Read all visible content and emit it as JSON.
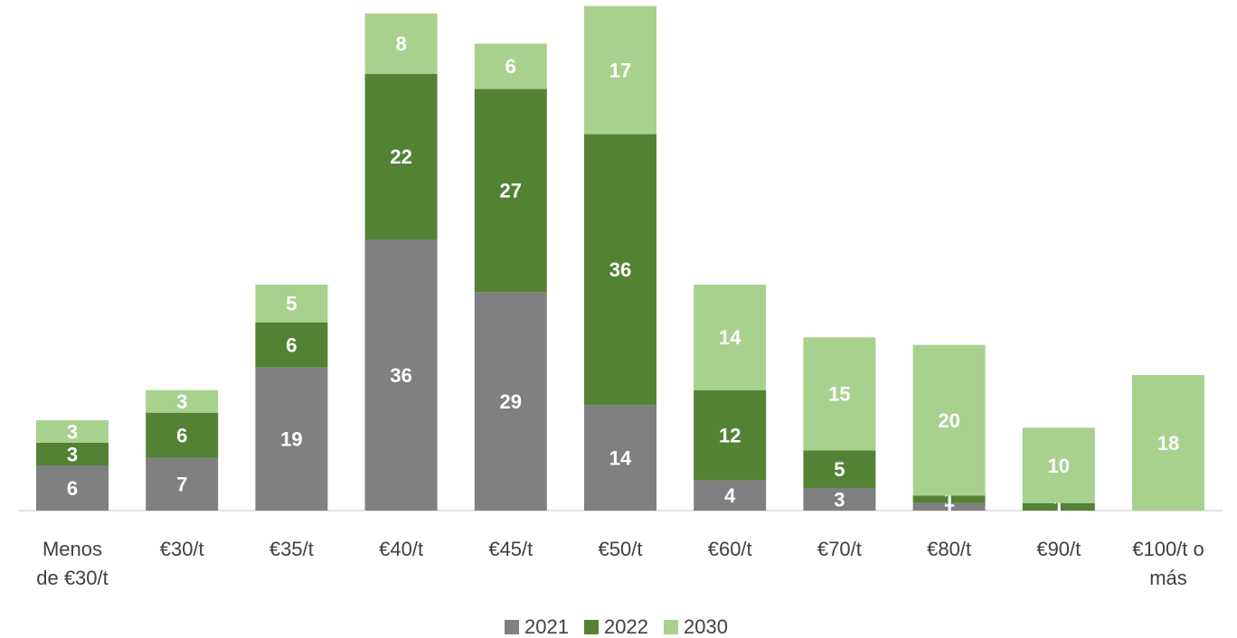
{
  "chart_data": {
    "type": "stacked_bar",
    "categories": [
      "Menos de €30/t",
      "€30/t",
      "€35/t",
      "€40/t",
      "€45/t",
      "€50/t",
      "€60/t",
      "€70/t",
      "€80/t",
      "€90/t",
      "€100/t o más"
    ],
    "series": [
      {
        "name": "2021",
        "color": "#808080",
        "values": [
          6,
          7,
          19,
          36,
          29,
          14,
          4,
          3,
          1,
          null,
          null
        ]
      },
      {
        "name": "2022",
        "color": "#548235",
        "values": [
          3,
          6,
          6,
          22,
          27,
          36,
          12,
          5,
          1,
          1,
          null
        ]
      },
      {
        "name": "2030",
        "color": "#a9d18e",
        "values": [
          3,
          3,
          5,
          8,
          6,
          17,
          14,
          15,
          20,
          10,
          18
        ]
      }
    ],
    "legend": "bottom"
  }
}
